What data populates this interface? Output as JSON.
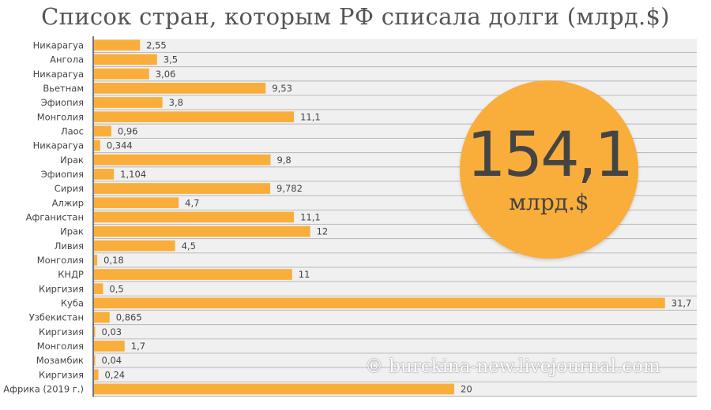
{
  "chart_data": {
    "type": "bar",
    "orientation": "horizontal",
    "title": "Список стран, которым РФ списала долги (млрд.$)",
    "categories": [
      "Никарагуа",
      "Ангола",
      "Никарагуа",
      "Вьетнам",
      "Эфиопия",
      "Монголия",
      "Лаос",
      "Никарагуа",
      "Ирак",
      "Эфиопия",
      "Сирия",
      "Алжир",
      "Афганистан",
      "Ирак",
      "Ливия",
      "Монголия",
      "КНДР",
      "Киргизия",
      "Куба",
      "Узбекистан",
      "Киргизия",
      "Монголия",
      "Мозамбик",
      "Киргизия",
      "Африка (2019 г.)"
    ],
    "values": [
      2.55,
      3.5,
      3.06,
      9.53,
      3.8,
      11.1,
      0.96,
      0.344,
      9.8,
      1.104,
      9.782,
      4.7,
      11.1,
      12,
      4.5,
      0.18,
      11,
      0.5,
      31.7,
      0.865,
      0.03,
      1.7,
      0.04,
      0.24,
      20
    ],
    "labels": [
      "2,55",
      "3,5",
      "3,06",
      "9,53",
      "3,8",
      "11,1",
      "0,96",
      "0,344",
      "9,8",
      "1,104",
      "9,782",
      "4,7",
      "11,1",
      "12",
      "4,5",
      "0,18",
      "11",
      "0,5",
      "31,7",
      "0,865",
      "0,03",
      "1,7",
      "0,04",
      "0,24",
      "20"
    ],
    "xlim": [
      0,
      33.5
    ],
    "bar_color": "#f9ae3b",
    "total": {
      "value": "154,1",
      "unit": "млрд.$",
      "color": "#f9ad3a"
    },
    "watermark": "© burckina-new.livejournal.com"
  }
}
